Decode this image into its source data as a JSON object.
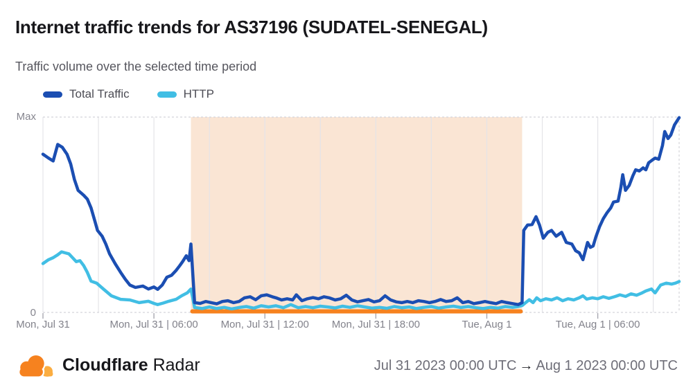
{
  "header": {
    "title": "Internet traffic trends for AS37196 (SUDATEL-SENEGAL)",
    "subtitle": "Traffic volume over the selected time period"
  },
  "legend": [
    {
      "label": "Total Traffic",
      "color": "#1B4EB2"
    },
    {
      "label": "HTTP",
      "color": "#41BEE4"
    }
  ],
  "y_axis": {
    "max_label": "Max",
    "min_label": "0"
  },
  "footer": {
    "brand_bold": "Cloudflare",
    "brand_regular": "Radar",
    "range_start": "Jul 31 2023 00:00 UTC",
    "arrow": "→",
    "range_end": "Aug 1 2023 00:00 UTC"
  },
  "chart_data": {
    "type": "line",
    "title": "Internet traffic trends for AS37196 (SUDATEL-SENEGAL)",
    "subtitle": "Traffic volume over the selected time period",
    "x_unit": "hours since Mon Jul 31 2023 00:00 UTC",
    "x_range": [
      0,
      34.4
    ],
    "y_range": [
      0,
      1
    ],
    "y_tick_labels": [
      "0",
      "Max"
    ],
    "grid": "vertical-every-3h",
    "legend_position": "top-left",
    "gridline_hours": [
      0,
      3,
      6,
      9,
      12,
      15,
      18,
      21,
      24,
      27,
      30,
      33
    ],
    "x_ticks": [
      {
        "t": 0,
        "label": "Mon, Jul 31"
      },
      {
        "t": 6,
        "label": "Mon, Jul 31 | 06:00"
      },
      {
        "t": 12,
        "label": "Mon, Jul 31 | 12:00"
      },
      {
        "t": 18,
        "label": "Mon, Jul 31 | 18:00"
      },
      {
        "t": 24,
        "label": "Tue, Aug 1"
      },
      {
        "t": 30,
        "label": "Tue, Aug 1 | 06:00"
      }
    ],
    "annotation": {
      "kind": "outage-highlight",
      "start": 8.0,
      "end": 25.91,
      "fill": "#FAE5D4",
      "underline_color": "#F6821F"
    },
    "colors": {
      "grid": "#E4E4E8",
      "border": "#D4D4D9",
      "tick": "#A7A7B0",
      "outage_fill": "#FAE5D4",
      "outage_line": "#F6821F"
    },
    "series": [
      {
        "id": "total-traffic",
        "name": "Total Traffic",
        "color": "#1B4EB2",
        "width": 4.5,
        "points": [
          [
            0,
            0.81
          ],
          [
            0.3,
            0.79
          ],
          [
            0.55,
            0.775
          ],
          [
            0.8,
            0.86
          ],
          [
            1.05,
            0.845
          ],
          [
            1.3,
            0.81
          ],
          [
            1.5,
            0.76
          ],
          [
            1.7,
            0.68
          ],
          [
            1.9,
            0.625
          ],
          [
            2.2,
            0.6
          ],
          [
            2.4,
            0.58
          ],
          [
            2.6,
            0.535
          ],
          [
            2.8,
            0.47
          ],
          [
            2.95,
            0.42
          ],
          [
            3.2,
            0.39
          ],
          [
            3.4,
            0.35
          ],
          [
            3.6,
            0.3
          ],
          [
            3.9,
            0.25
          ],
          [
            4.2,
            0.205
          ],
          [
            4.45,
            0.17
          ],
          [
            4.7,
            0.14
          ],
          [
            5.0,
            0.128
          ],
          [
            5.4,
            0.135
          ],
          [
            5.7,
            0.12
          ],
          [
            6.0,
            0.13
          ],
          [
            6.2,
            0.118
          ],
          [
            6.45,
            0.14
          ],
          [
            6.7,
            0.18
          ],
          [
            6.95,
            0.19
          ],
          [
            7.2,
            0.215
          ],
          [
            7.4,
            0.24
          ],
          [
            7.55,
            0.26
          ],
          [
            7.75,
            0.29
          ],
          [
            7.9,
            0.265
          ],
          [
            8.0,
            0.35
          ],
          [
            8.2,
            0.05
          ],
          [
            8.5,
            0.046
          ],
          [
            8.8,
            0.056
          ],
          [
            9.1,
            0.05
          ],
          [
            9.4,
            0.044
          ],
          [
            9.7,
            0.056
          ],
          [
            10.0,
            0.06
          ],
          [
            10.3,
            0.05
          ],
          [
            10.6,
            0.056
          ],
          [
            10.9,
            0.075
          ],
          [
            11.2,
            0.08
          ],
          [
            11.5,
            0.065
          ],
          [
            11.8,
            0.085
          ],
          [
            12.1,
            0.09
          ],
          [
            12.4,
            0.08
          ],
          [
            12.6,
            0.075
          ],
          [
            12.9,
            0.064
          ],
          [
            13.2,
            0.07
          ],
          [
            13.5,
            0.064
          ],
          [
            13.7,
            0.09
          ],
          [
            14.0,
            0.06
          ],
          [
            14.3,
            0.07
          ],
          [
            14.6,
            0.076
          ],
          [
            14.9,
            0.07
          ],
          [
            15.2,
            0.08
          ],
          [
            15.5,
            0.074
          ],
          [
            15.8,
            0.064
          ],
          [
            16.1,
            0.07
          ],
          [
            16.4,
            0.088
          ],
          [
            16.7,
            0.064
          ],
          [
            17.0,
            0.054
          ],
          [
            17.3,
            0.06
          ],
          [
            17.6,
            0.066
          ],
          [
            17.9,
            0.054
          ],
          [
            18.2,
            0.06
          ],
          [
            18.5,
            0.085
          ],
          [
            18.8,
            0.064
          ],
          [
            19.1,
            0.054
          ],
          [
            19.4,
            0.05
          ],
          [
            19.7,
            0.056
          ],
          [
            20.0,
            0.05
          ],
          [
            20.3,
            0.06
          ],
          [
            20.6,
            0.056
          ],
          [
            20.9,
            0.05
          ],
          [
            21.2,
            0.056
          ],
          [
            21.5,
            0.066
          ],
          [
            21.8,
            0.056
          ],
          [
            22.1,
            0.06
          ],
          [
            22.4,
            0.075
          ],
          [
            22.7,
            0.05
          ],
          [
            23.0,
            0.056
          ],
          [
            23.3,
            0.045
          ],
          [
            23.6,
            0.05
          ],
          [
            23.9,
            0.056
          ],
          [
            24.2,
            0.05
          ],
          [
            24.5,
            0.045
          ],
          [
            24.8,
            0.056
          ],
          [
            25.1,
            0.05
          ],
          [
            25.4,
            0.045
          ],
          [
            25.7,
            0.04
          ],
          [
            25.91,
            0.05
          ],
          [
            26.0,
            0.42
          ],
          [
            26.2,
            0.447
          ],
          [
            26.45,
            0.45
          ],
          [
            26.66,
            0.49
          ],
          [
            26.85,
            0.447
          ],
          [
            27.05,
            0.38
          ],
          [
            27.3,
            0.41
          ],
          [
            27.5,
            0.42
          ],
          [
            27.75,
            0.39
          ],
          [
            28.05,
            0.41
          ],
          [
            28.3,
            0.358
          ],
          [
            28.6,
            0.35
          ],
          [
            28.8,
            0.316
          ],
          [
            29.0,
            0.305
          ],
          [
            29.2,
            0.27
          ],
          [
            29.45,
            0.358
          ],
          [
            29.6,
            0.333
          ],
          [
            29.75,
            0.34
          ],
          [
            29.9,
            0.387
          ],
          [
            30.1,
            0.44
          ],
          [
            30.3,
            0.48
          ],
          [
            30.5,
            0.51
          ],
          [
            30.7,
            0.535
          ],
          [
            30.85,
            0.565
          ],
          [
            31.1,
            0.57
          ],
          [
            31.25,
            0.64
          ],
          [
            31.35,
            0.705
          ],
          [
            31.5,
            0.625
          ],
          [
            31.7,
            0.65
          ],
          [
            31.9,
            0.7
          ],
          [
            32.05,
            0.73
          ],
          [
            32.25,
            0.724
          ],
          [
            32.45,
            0.74
          ],
          [
            32.6,
            0.73
          ],
          [
            32.75,
            0.766
          ],
          [
            32.95,
            0.78
          ],
          [
            33.1,
            0.79
          ],
          [
            33.3,
            0.784
          ],
          [
            33.5,
            0.855
          ],
          [
            33.62,
            0.926
          ],
          [
            33.8,
            0.89
          ],
          [
            33.95,
            0.908
          ],
          [
            34.15,
            0.96
          ],
          [
            34.4,
            0.997
          ]
        ]
      },
      {
        "id": "http",
        "name": "HTTP",
        "color": "#41BEE4",
        "width": 4.5,
        "points": [
          [
            0,
            0.25
          ],
          [
            0.3,
            0.27
          ],
          [
            0.55,
            0.28
          ],
          [
            0.8,
            0.295
          ],
          [
            1.0,
            0.31
          ],
          [
            1.2,
            0.305
          ],
          [
            1.4,
            0.3
          ],
          [
            1.6,
            0.28
          ],
          [
            1.8,
            0.26
          ],
          [
            2.0,
            0.265
          ],
          [
            2.2,
            0.24
          ],
          [
            2.4,
            0.205
          ],
          [
            2.6,
            0.16
          ],
          [
            2.9,
            0.15
          ],
          [
            3.3,
            0.117
          ],
          [
            3.7,
            0.085
          ],
          [
            4.2,
            0.067
          ],
          [
            4.7,
            0.064
          ],
          [
            5.2,
            0.05
          ],
          [
            5.7,
            0.057
          ],
          [
            6.0,
            0.046
          ],
          [
            6.2,
            0.04
          ],
          [
            6.5,
            0.048
          ],
          [
            6.8,
            0.057
          ],
          [
            7.2,
            0.067
          ],
          [
            7.5,
            0.085
          ],
          [
            7.8,
            0.1
          ],
          [
            8.0,
            0.12
          ],
          [
            8.2,
            0.025
          ],
          [
            8.6,
            0.02
          ],
          [
            9.0,
            0.028
          ],
          [
            9.4,
            0.02
          ],
          [
            9.8,
            0.026
          ],
          [
            10.2,
            0.018
          ],
          [
            10.6,
            0.025
          ],
          [
            11.0,
            0.03
          ],
          [
            11.4,
            0.022
          ],
          [
            11.8,
            0.034
          ],
          [
            12.2,
            0.028
          ],
          [
            12.6,
            0.034
          ],
          [
            13.0,
            0.024
          ],
          [
            13.4,
            0.04
          ],
          [
            13.8,
            0.024
          ],
          [
            14.2,
            0.03
          ],
          [
            14.6,
            0.024
          ],
          [
            15.0,
            0.032
          ],
          [
            15.4,
            0.028
          ],
          [
            15.8,
            0.023
          ],
          [
            16.2,
            0.032
          ],
          [
            16.6,
            0.026
          ],
          [
            17.0,
            0.034
          ],
          [
            17.4,
            0.028
          ],
          [
            17.8,
            0.022
          ],
          [
            18.2,
            0.026
          ],
          [
            18.6,
            0.021
          ],
          [
            19.0,
            0.03
          ],
          [
            19.4,
            0.024
          ],
          [
            19.8,
            0.028
          ],
          [
            20.2,
            0.02
          ],
          [
            20.6,
            0.026
          ],
          [
            21.0,
            0.03
          ],
          [
            21.4,
            0.022
          ],
          [
            21.8,
            0.028
          ],
          [
            22.2,
            0.032
          ],
          [
            22.6,
            0.025
          ],
          [
            23.0,
            0.03
          ],
          [
            23.4,
            0.024
          ],
          [
            23.8,
            0.02
          ],
          [
            24.2,
            0.026
          ],
          [
            24.6,
            0.022
          ],
          [
            25.0,
            0.03
          ],
          [
            25.4,
            0.026
          ],
          [
            25.7,
            0.03
          ],
          [
            25.91,
            0.035
          ],
          [
            26.1,
            0.05
          ],
          [
            26.3,
            0.065
          ],
          [
            26.5,
            0.05
          ],
          [
            26.7,
            0.075
          ],
          [
            26.9,
            0.06
          ],
          [
            27.2,
            0.07
          ],
          [
            27.5,
            0.064
          ],
          [
            27.8,
            0.075
          ],
          [
            28.1,
            0.06
          ],
          [
            28.4,
            0.07
          ],
          [
            28.7,
            0.064
          ],
          [
            29.0,
            0.075
          ],
          [
            29.2,
            0.085
          ],
          [
            29.4,
            0.068
          ],
          [
            29.7,
            0.075
          ],
          [
            30.0,
            0.07
          ],
          [
            30.3,
            0.08
          ],
          [
            30.6,
            0.072
          ],
          [
            30.9,
            0.08
          ],
          [
            31.2,
            0.09
          ],
          [
            31.5,
            0.082
          ],
          [
            31.8,
            0.095
          ],
          [
            32.1,
            0.088
          ],
          [
            32.4,
            0.1
          ],
          [
            32.6,
            0.11
          ],
          [
            32.9,
            0.12
          ],
          [
            33.1,
            0.1
          ],
          [
            33.4,
            0.14
          ],
          [
            33.7,
            0.15
          ],
          [
            34.0,
            0.145
          ],
          [
            34.2,
            0.15
          ],
          [
            34.4,
            0.158
          ]
        ]
      }
    ]
  }
}
